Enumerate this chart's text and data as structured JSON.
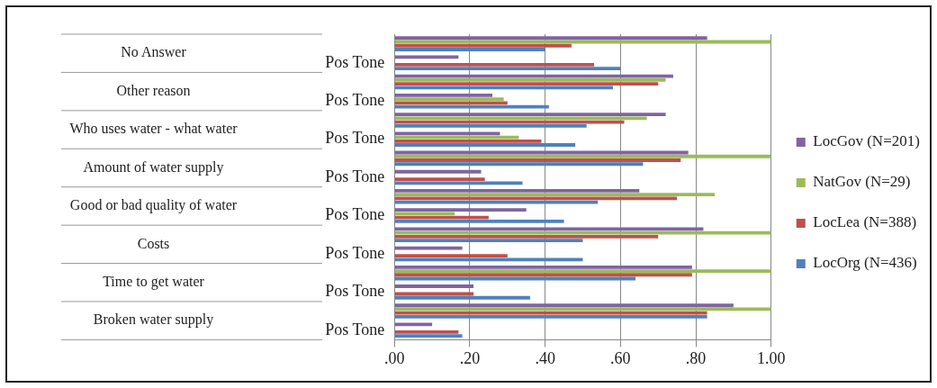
{
  "chart_data": {
    "type": "bar",
    "orientation": "horizontal",
    "categories": [
      null,
      "Pos Tone",
      null,
      "Pos Tone",
      null,
      "Pos Tone",
      null,
      "Pos Tone",
      null,
      "Pos Tone",
      null,
      "Pos Tone",
      null,
      "Pos Tone",
      null,
      "Pos Tone"
    ],
    "series": [
      {
        "name": "LocGov (N=201)",
        "color": "#8064a2",
        "values": [
          0.83,
          0.17,
          0.74,
          0.26,
          0.72,
          0.28,
          0.78,
          0.23,
          0.65,
          0.35,
          0.82,
          0.18,
          0.79,
          0.21,
          0.9,
          0.1
        ]
      },
      {
        "name": "NatGov (N=29)",
        "color": "#9bbb59",
        "values": [
          1.0,
          0,
          0.72,
          0.29,
          0.67,
          0.33,
          1.0,
          0,
          0.85,
          0.16,
          1.0,
          0,
          1.0,
          0,
          1.0,
          0
        ]
      },
      {
        "name": "LocLea (N=388)",
        "color": "#c0504d",
        "values": [
          0.47,
          0.53,
          0.7,
          0.3,
          0.61,
          0.39,
          0.76,
          0.24,
          0.75,
          0.25,
          0.7,
          0.3,
          0.79,
          0.21,
          0.83,
          0.17
        ]
      },
      {
        "name": "LocOrg (N=436)",
        "color": "#4f81bd",
        "values": [
          0.4,
          0.6,
          0.58,
          0.41,
          0.51,
          0.48,
          0.66,
          0.34,
          0.54,
          0.45,
          0.5,
          0.5,
          0.64,
          0.36,
          0.83,
          0.18
        ]
      }
    ],
    "xlim": [
      0,
      1
    ],
    "xticks": [
      {
        "value": 0,
        "label": ".00"
      },
      {
        "value": 0.2,
        "label": ".20"
      },
      {
        "value": 0.4,
        "label": ".40"
      },
      {
        "value": 0.6,
        "label": ".60"
      },
      {
        "value": 0.8,
        "label": ".80"
      },
      {
        "value": 1,
        "label": "1.00"
      }
    ],
    "annotations": [
      "No Answer",
      "Other reason",
      "Who uses water - what water",
      "Amount of water supply",
      "Good or bad quality of water",
      "Costs",
      "Time to get water",
      "Broken water supply"
    ],
    "grid": "x",
    "legend": "right"
  }
}
